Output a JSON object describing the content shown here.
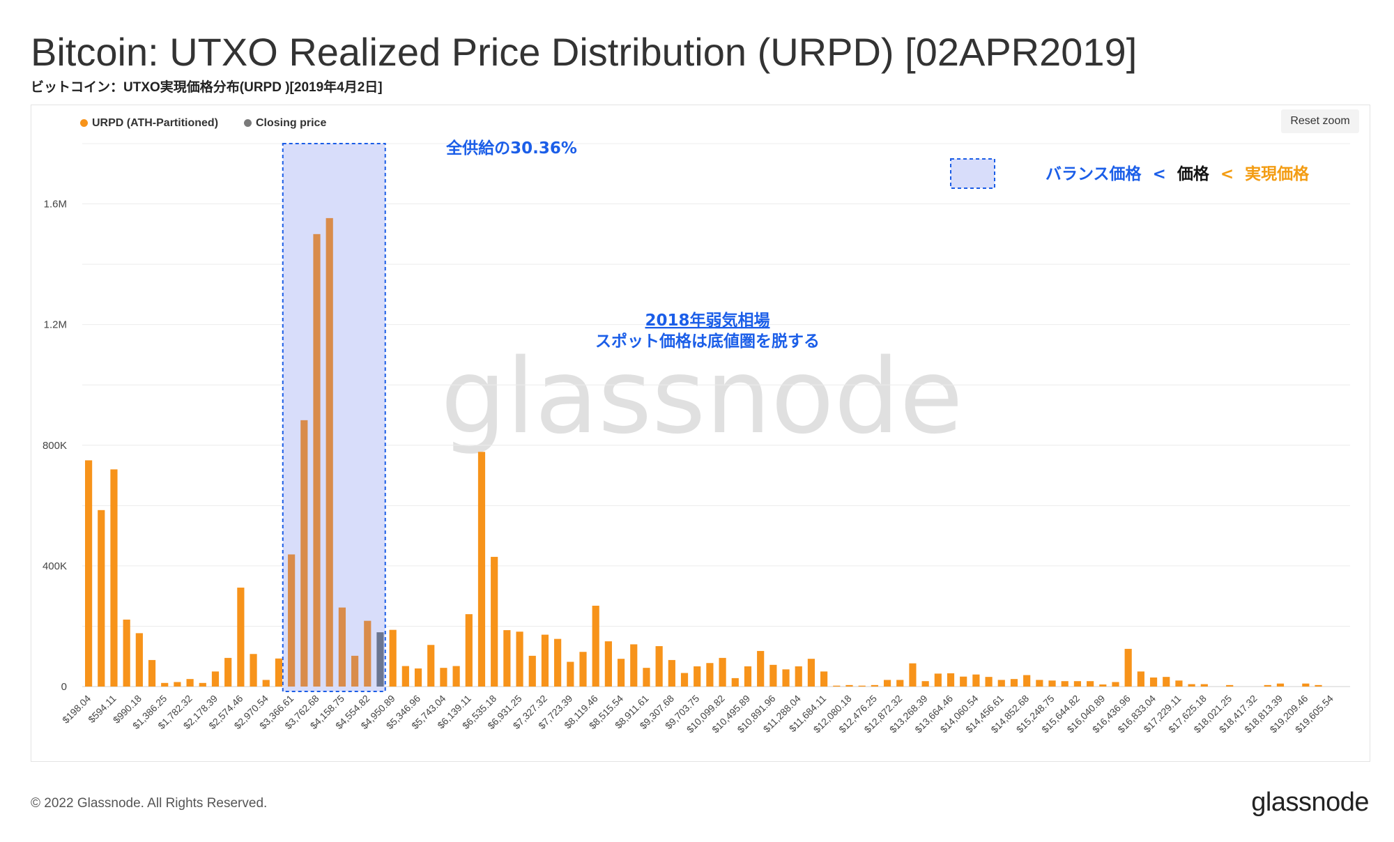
{
  "header": {
    "title": "Bitcoin: UTXO Realized Price Distribution (URPD) [02APR2019]",
    "subtitle": "ビットコイン：UTXO実現価格分布(URPD )[2019年4月2日]"
  },
  "toolbar": {
    "reset_zoom_label": "Reset zoom"
  },
  "legend": [
    {
      "label": "URPD (ATH-Partitioned)",
      "color": "#f7931a"
    },
    {
      "label": "Closing price",
      "color": "#7a7a7a"
    }
  ],
  "annotations": {
    "supply_share": "全供給の30.36%",
    "market_title": "2018年弱気相場",
    "market_text": "スポット価格は底値圏を脱する",
    "key_balance": "バランス価格",
    "key_lt1": "<",
    "key_price": "価格",
    "key_lt2": "<",
    "key_realized": "実現価格"
  },
  "watermark": "glassnode",
  "footer": {
    "copyright": "© 2022 Glassnode. All Rights Reserved.",
    "logo": "glassnode"
  },
  "colors": {
    "bar": "#f7931a",
    "bar_in_box": "#d98c4b",
    "closing_bar": "#6b7691",
    "box_fill": "#d8ddfa",
    "box_border": "#1a5ce6",
    "annotation_blue": "#1b5ee8",
    "annotation_orange": "#f39c12",
    "grid": "#ececec"
  },
  "chart_data": {
    "type": "bar",
    "xlabel": "",
    "ylabel": "",
    "ylim": [
      0,
      1800000
    ],
    "yticks": [
      0,
      400000,
      800000,
      1200000,
      1600000
    ],
    "ytick_labels": [
      "0",
      "400K",
      "800K",
      "1.2M",
      "1.6M"
    ],
    "grid": true,
    "legend_position": "top-left",
    "bin_start": 198.04,
    "bin_width": 198.03,
    "bin_count": 100,
    "x_tick_labels": [
      "$198.04",
      "$594.11",
      "$990.18",
      "$1,386.25",
      "$1,782.32",
      "$2,178.39",
      "$2,574.46",
      "$2,970.54",
      "$3,366.61",
      "$3,762.68",
      "$4,158.75",
      "$4,554.82",
      "$4,950.89",
      "$5,346.96",
      "$5,743.04",
      "$6,139.11",
      "$6,535.18",
      "$6,931.25",
      "$7,327.32",
      "$7,723.39",
      "$8,119.46",
      "$8,515.54",
      "$8,911.61",
      "$9,307.68",
      "$9,703.75",
      "$10,099.82",
      "$10,495.89",
      "$10,891.96",
      "$11,288.04",
      "$11,684.11",
      "$12,080.18",
      "$12,476.25",
      "$12,872.32",
      "$13,268.39",
      "$13,664.46",
      "$14,060.54",
      "$14,456.61",
      "$14,852.68",
      "$15,248.75",
      "$15,644.82",
      "$16,040.89",
      "$16,436.96",
      "$16,833.04",
      "$17,229.11",
      "$17,625.18",
      "$18,021.25",
      "$18,417.32",
      "$18,813.39",
      "$19,209.46",
      "$19,605.54"
    ],
    "closing_price_bin": 23,
    "highlight_bins": [
      16,
      23
    ],
    "values": [
      750000,
      585000,
      720000,
      222000,
      177000,
      88000,
      12000,
      15000,
      25000,
      12000,
      50000,
      95000,
      328000,
      108000,
      22000,
      93000,
      438000,
      883000,
      1500000,
      1553000,
      262000,
      102000,
      218000,
      180000,
      188000,
      68000,
      60000,
      138000,
      62000,
      68000,
      240000,
      778000,
      430000,
      187000,
      182000,
      102000,
      172000,
      158000,
      82000,
      115000,
      268000,
      150000,
      92000,
      140000,
      62000,
      134000,
      88000,
      45000,
      67000,
      78000,
      95000,
      28000,
      67000,
      118000,
      72000,
      57000,
      67000,
      92000,
      50000,
      3000,
      5000,
      3000,
      5000,
      22000,
      22000,
      77000,
      18000,
      43000,
      44000,
      33000,
      40000,
      32000,
      22000,
      25000,
      38000,
      22000,
      20000,
      18000,
      18000,
      18000,
      7000,
      15000,
      125000,
      50000,
      30000,
      32000,
      20000,
      8000,
      8000,
      0,
      5000,
      0,
      0,
      5000,
      10000,
      0,
      10000,
      5000,
      0,
      0
    ]
  }
}
